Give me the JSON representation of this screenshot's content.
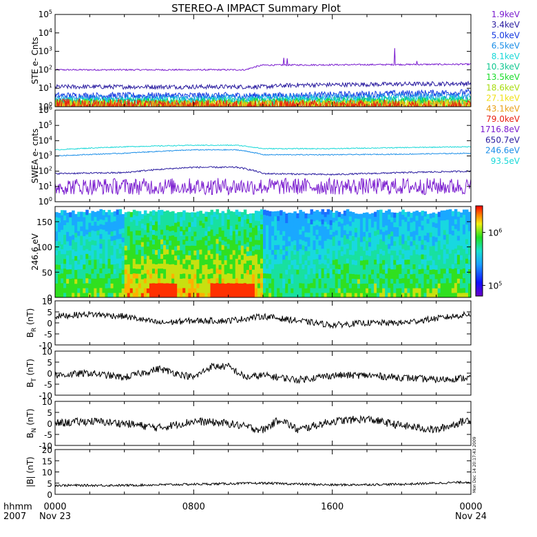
{
  "title": "STEREO-A IMPACT Summary Plot",
  "footer": {
    "time_label": "hhmm",
    "year_label": "2007",
    "stamp": "Mon Dec 14 20:17:43 2009"
  },
  "x_axis": {
    "ticks": [
      {
        "hours": 0,
        "label": "0000",
        "date": "Nov 23"
      },
      {
        "hours": 8,
        "label": "0800",
        "date": ""
      },
      {
        "hours": 16,
        "label": "1600",
        "date": ""
      },
      {
        "hours": 24,
        "label": "0000",
        "date": "Nov 24"
      }
    ]
  },
  "chart_data": [
    {
      "type": "line",
      "name": "ste",
      "ylabel": "STE e- Cnts",
      "yscale": "log",
      "ylim": [
        1,
        100000
      ],
      "yticks": [
        {
          "v": 1,
          "label": "10",
          "exp": "0"
        },
        {
          "v": 10,
          "label": "10",
          "exp": "1"
        },
        {
          "v": 100,
          "label": "10",
          "exp": "2"
        },
        {
          "v": 1000,
          "label": "10",
          "exp": "3"
        },
        {
          "v": 10000,
          "label": "10",
          "exp": "4"
        },
        {
          "v": 100000,
          "label": "10",
          "exp": "5"
        }
      ],
      "series": [
        {
          "name": "1.9keV",
          "color": "#7a1ccf",
          "x": [
            0,
            11,
            12,
            24
          ],
          "values": [
            100,
            100,
            180,
            200
          ],
          "jitter": 0.04,
          "spikes": [
            [
              13.2,
              450
            ],
            [
              13.4,
              420
            ],
            [
              19.6,
              1500
            ],
            [
              20.9,
              300
            ]
          ]
        },
        {
          "name": "3.4keV",
          "color": "#2a1ca0",
          "x": [
            0,
            12,
            14,
            24
          ],
          "values": [
            12,
            12,
            15,
            18
          ],
          "jitter": 0.12
        },
        {
          "name": "5.0keV",
          "color": "#1236e0",
          "x": [
            0,
            14,
            24
          ],
          "values": [
            4,
            4,
            6
          ],
          "jitter": 0.18
        },
        {
          "name": "6.5keV",
          "color": "#1a8ee8",
          "x": [
            0,
            24
          ],
          "values": [
            2.8,
            3.6
          ],
          "jitter": 0.2
        },
        {
          "name": "8.1keV",
          "color": "#18d8d8",
          "x": [
            0,
            24
          ],
          "values": [
            2,
            2.5
          ],
          "jitter": 0.22
        },
        {
          "name": "10.3keV",
          "color": "#10c890",
          "x": [
            0,
            24
          ],
          "values": [
            1.7,
            2
          ],
          "jitter": 0.25
        },
        {
          "name": "13.5keV",
          "color": "#18dc28",
          "x": [
            0,
            24
          ],
          "values": [
            1.4,
            1.6
          ],
          "jitter": 0.28
        },
        {
          "name": "18.6keV",
          "color": "#a8dc10",
          "x": [
            0,
            24
          ],
          "values": [
            1.25,
            1.3
          ],
          "jitter": 0.3
        },
        {
          "name": "27.1keV",
          "color": "#f0e018",
          "x": [
            0,
            24
          ],
          "values": [
            1.15,
            1.2
          ],
          "jitter": 0.3
        },
        {
          "name": "43.1keV",
          "color": "#e8a018",
          "x": [
            0,
            24
          ],
          "values": [
            1.1,
            1.1
          ],
          "jitter": 0.3
        },
        {
          "name": "79.0keV",
          "color": "#e82010",
          "x": [
            0,
            4,
            5,
            24
          ],
          "values": [
            1.25,
            1.25,
            1.05,
            1.05
          ],
          "jitter": 0.35
        }
      ]
    },
    {
      "type": "line",
      "name": "swea",
      "ylabel": "SWEA e- cnts",
      "yscale": "log",
      "ylim": [
        1,
        1000000
      ],
      "yticks": [
        {
          "v": 1,
          "label": "10",
          "exp": "0"
        },
        {
          "v": 10,
          "label": "10",
          "exp": "1"
        },
        {
          "v": 100,
          "label": "10",
          "exp": "2"
        },
        {
          "v": 1000,
          "label": "10",
          "exp": "3"
        },
        {
          "v": 10000,
          "label": "10",
          "exp": "4"
        },
        {
          "v": 100000,
          "label": "10",
          "exp": "5"
        },
        {
          "v": 1000000,
          "label": "10",
          "exp": "6"
        }
      ],
      "series": [
        {
          "name": "1716.8eV",
          "color": "#7a1ccf",
          "x": [
            0,
            24
          ],
          "values": [
            10,
            10
          ],
          "jitter": 0.55
        },
        {
          "name": "650.7eV",
          "color": "#2a1ca0",
          "x": [
            0,
            4,
            8,
            10.5,
            12,
            16,
            20,
            24
          ],
          "values": [
            70,
            80,
            180,
            180,
            70,
            60,
            80,
            100
          ],
          "jitter": 0.05
        },
        {
          "name": "246.6eV",
          "color": "#1a8ee8",
          "x": [
            0,
            4,
            8,
            10.5,
            12,
            16,
            20,
            24
          ],
          "values": [
            1000,
            1500,
            2500,
            2500,
            1200,
            1200,
            1300,
            1500
          ],
          "jitter": 0.03
        },
        {
          "name": "93.5eV",
          "color": "#18d8d8",
          "x": [
            0,
            4,
            8,
            10.5,
            12,
            16,
            20,
            24
          ],
          "values": [
            2500,
            4000,
            5000,
            5000,
            3000,
            3000,
            3500,
            4000
          ],
          "jitter": 0.03
        }
      ]
    },
    {
      "type": "heatmap",
      "name": "pad",
      "ylabel": "246.6 eV",
      "ylim": [
        0,
        180
      ],
      "yticks": [
        0,
        50,
        100,
        150
      ],
      "colorbar": {
        "scale": "log",
        "ticks": [
          {
            "v": 100000,
            "label": "10",
            "exp": "5"
          },
          {
            "v": 1000000,
            "label": "10",
            "exp": "6"
          }
        ]
      }
    },
    {
      "type": "line",
      "name": "br",
      "ylabel": "B",
      "ylabel_sub": "R",
      "yunit": "(nT)",
      "ylim": [
        -10,
        10
      ],
      "yticks": [
        -10,
        -5,
        0,
        5,
        10
      ],
      "series": [
        {
          "name": "BR",
          "color": "#000000",
          "x": [
            0,
            2,
            4,
            6,
            8,
            10,
            12,
            14,
            16,
            18,
            20,
            22,
            24
          ],
          "values": [
            3,
            4,
            3,
            0,
            1,
            1,
            3,
            1,
            -1,
            0,
            0,
            2,
            4
          ],
          "jitter": 1.4
        }
      ]
    },
    {
      "type": "line",
      "name": "bt",
      "ylabel": "B",
      "ylabel_sub": "T",
      "yunit": "(nT)",
      "ylim": [
        -10,
        10
      ],
      "yticks": [
        -10,
        -5,
        0,
        5,
        10
      ],
      "series": [
        {
          "name": "BT",
          "color": "#000000",
          "x": [
            0,
            2,
            4,
            5,
            6,
            8,
            9,
            10,
            11,
            12,
            14,
            16,
            18,
            20,
            22,
            24
          ],
          "values": [
            -1,
            0,
            -2,
            0,
            2,
            -2,
            3,
            3,
            -2,
            -1,
            -3,
            -1,
            -1,
            -2,
            -3,
            -2
          ],
          "jitter": 1.6
        }
      ]
    },
    {
      "type": "line",
      "name": "bn",
      "ylabel": "B",
      "ylabel_sub": "N",
      "yunit": "(nT)",
      "ylim": [
        -10,
        10
      ],
      "yticks": [
        -10,
        -5,
        0,
        5,
        10
      ],
      "series": [
        {
          "name": "BN",
          "color": "#000000",
          "x": [
            0,
            2,
            4,
            6,
            8,
            10,
            12,
            13,
            14,
            16,
            18,
            20,
            22,
            24
          ],
          "values": [
            0,
            1,
            0,
            -2,
            1,
            0,
            -3,
            2,
            -3,
            1,
            2,
            -1,
            -3,
            2
          ],
          "jitter": 1.8
        }
      ]
    },
    {
      "type": "line",
      "name": "bmag",
      "ylabel": "|B|",
      "yunit": "(nT)",
      "ylim": [
        0,
        20
      ],
      "yticks": [
        0,
        5,
        10,
        15,
        20
      ],
      "series": [
        {
          "name": "|B|",
          "color": "#000000",
          "x": [
            0,
            4,
            8,
            12,
            16,
            20,
            24
          ],
          "values": [
            4,
            4,
            4.5,
            5,
            4.2,
            4.5,
            5.5
          ],
          "jitter": 0.5
        }
      ]
    }
  ]
}
